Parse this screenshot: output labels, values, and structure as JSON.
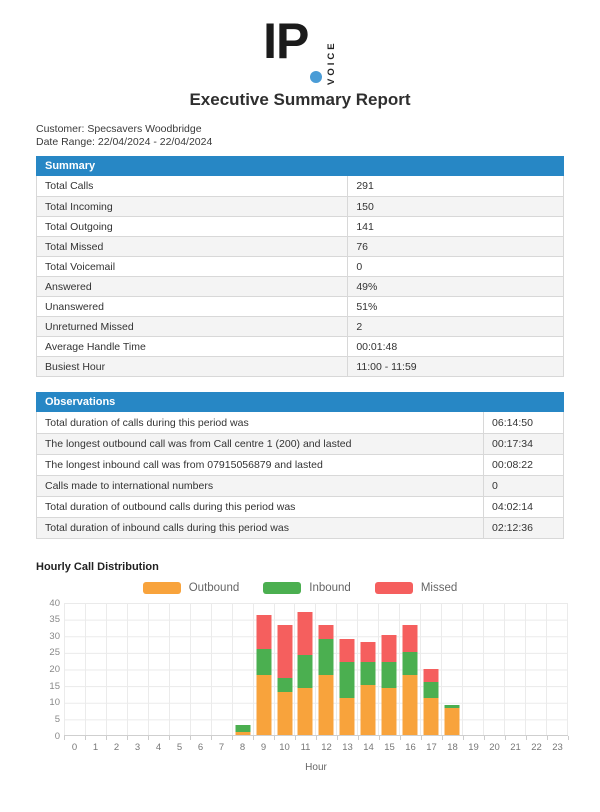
{
  "logo": {
    "text": "IP",
    "vertical_text": "VOICE",
    "dot_color": "#4a9cd6"
  },
  "title": "Executive Summary Report",
  "meta": {
    "customer": "Customer: Specsavers Woodbridge",
    "date_range": "Date Range: 22/04/2024 - 22/04/2024"
  },
  "theme": {
    "header_blue": "#2787c5"
  },
  "summary": {
    "header": "Summary",
    "rows": [
      {
        "label": "Total Calls",
        "value": "291"
      },
      {
        "label": "Total Incoming",
        "value": "150"
      },
      {
        "label": "Total Outgoing",
        "value": "141"
      },
      {
        "label": "Total Missed",
        "value": "76"
      },
      {
        "label": "Total Voicemail",
        "value": "0"
      },
      {
        "label": "Answered",
        "value": "49%"
      },
      {
        "label": "Unanswered",
        "value": "51%"
      },
      {
        "label": "Unreturned Missed",
        "value": "2"
      },
      {
        "label": "Average Handle Time",
        "value": "00:01:48"
      },
      {
        "label": "Busiest Hour",
        "value": "11:00 - 11:59"
      }
    ]
  },
  "observations": {
    "header": "Observations",
    "rows": [
      {
        "label": "Total duration of calls during this period was",
        "value": "06:14:50"
      },
      {
        "label": "The longest outbound call was from Call centre 1 (200) and lasted",
        "value": "00:17:34"
      },
      {
        "label": "The longest inbound call was from 07915056879 and lasted",
        "value": "00:08:22"
      },
      {
        "label": "Calls made to international numbers",
        "value": "0"
      },
      {
        "label": "Total duration of outbound calls during this period was",
        "value": "04:02:14"
      },
      {
        "label": "Total duration of inbound calls during this period was",
        "value": "02:12:36"
      }
    ]
  },
  "chart_data": {
    "type": "bar",
    "stacked": true,
    "title": "Hourly Call Distribution",
    "xlabel": "Hour",
    "ylabel": "",
    "ylim": [
      0,
      40
    ],
    "ytick_step": 5,
    "grid": true,
    "legend_position": "top",
    "categories": [
      0,
      1,
      2,
      3,
      4,
      5,
      6,
      7,
      8,
      9,
      10,
      11,
      12,
      13,
      14,
      15,
      16,
      17,
      18,
      19,
      20,
      21,
      22,
      23
    ],
    "series": [
      {
        "name": "Outbound",
        "color": "#f8a33c",
        "values": [
          0,
          0,
          0,
          0,
          0,
          0,
          0,
          0,
          1,
          18,
          13,
          14,
          18,
          11,
          15,
          14,
          18,
          11,
          8,
          0,
          0,
          0,
          0,
          0
        ]
      },
      {
        "name": "Inbound",
        "color": "#4baf50",
        "values": [
          0,
          0,
          0,
          0,
          0,
          0,
          0,
          0,
          2,
          8,
          4,
          10,
          11,
          11,
          7,
          8,
          7,
          5,
          1,
          0,
          0,
          0,
          0,
          0
        ]
      },
      {
        "name": "Missed",
        "color": "#f55f5e",
        "values": [
          0,
          0,
          0,
          0,
          0,
          0,
          0,
          0,
          0,
          10,
          16,
          13,
          4,
          7,
          6,
          8,
          8,
          4,
          0,
          0,
          0,
          0,
          0,
          0
        ]
      }
    ]
  }
}
